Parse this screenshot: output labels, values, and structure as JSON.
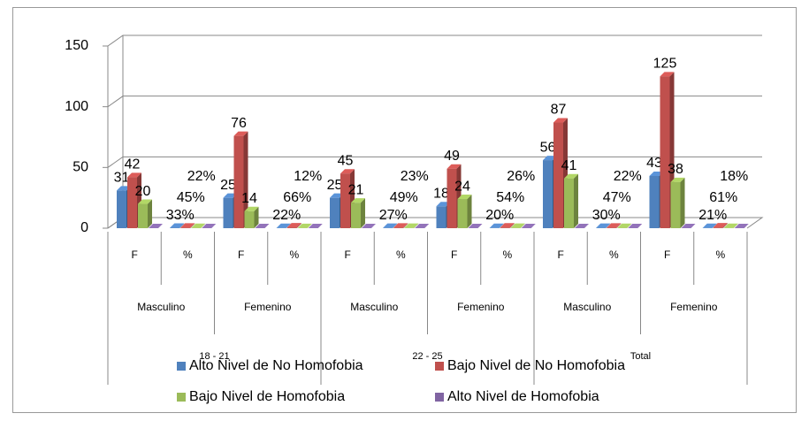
{
  "chart_data": {
    "type": "bar3d",
    "categories": [
      "F",
      "%",
      "F",
      "%",
      "F",
      "%",
      "F",
      "%",
      "F",
      "%",
      "F",
      "%"
    ],
    "groups": [
      "Masculino",
      "Femenino",
      "Masculino",
      "Femenino",
      "Masculino",
      "Femenino"
    ],
    "supergroups": [
      "18 - 21",
      "22 - 25",
      "Total"
    ],
    "series": [
      {
        "name": "Alto Nivel de No Homofobia",
        "color": "#4f81bd",
        "values": [
          31,
          0.33,
          25,
          0.22,
          25,
          0.27,
          18,
          0.2,
          56,
          0.3,
          43,
          0.21
        ],
        "value_labels": [
          "31",
          "33%",
          "25",
          "22%",
          "25",
          "27%",
          "18",
          "20%",
          "56",
          "30%",
          "43",
          "21%"
        ]
      },
      {
        "name": "Bajo Nivel de No Homofobia",
        "color": "#c0504d",
        "values": [
          42,
          0.45,
          76,
          0.66,
          45,
          0.49,
          49,
          0.54,
          87,
          0.47,
          125,
          0.61
        ],
        "value_labels": [
          "42",
          "45%",
          "76",
          "66%",
          "45",
          "49%",
          "49",
          "54%",
          "87",
          "47%",
          "125",
          "61%"
        ]
      },
      {
        "name": "Bajo Nivel de Homofobia",
        "color": "#9bbb59",
        "values": [
          20,
          0.22,
          14,
          0.12,
          21,
          0.23,
          24,
          0.26,
          41,
          0.22,
          38,
          0.18
        ],
        "value_labels": [
          "20",
          "22%",
          "14",
          "12%",
          "21",
          "23%",
          "24",
          "26%",
          "41",
          "22%",
          "38",
          "18%"
        ]
      },
      {
        "name": "Alto Nivel de Homofobia",
        "color": "#8064a2",
        "values": [
          0,
          0,
          0,
          0,
          0,
          0,
          0,
          0,
          0,
          0,
          0,
          0
        ]
      }
    ],
    "ylim": [
      0,
      150
    ],
    "yticks": [
      0,
      50,
      100,
      150
    ],
    "grid": true
  }
}
